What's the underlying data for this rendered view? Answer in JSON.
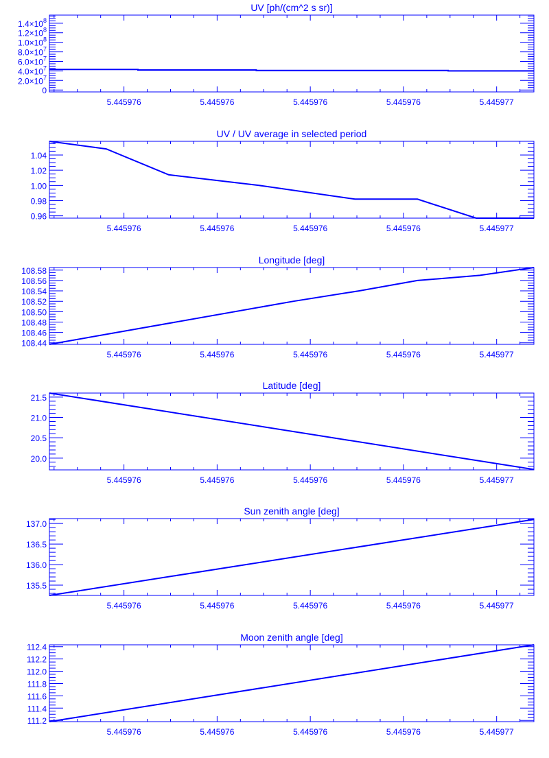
{
  "color": "#0000ff",
  "chart_data": [
    {
      "type": "line",
      "title": "UV [ph/(cm^2 s sr)]",
      "xlim": [
        5.44597602,
        5.44597654
      ],
      "ylim": [
        -4000000,
        157000000
      ],
      "x_ticks": [
        5.4459761,
        5.4459762,
        5.4459763,
        5.4459764,
        5.4459765
      ],
      "x_tick_labels": [
        "5.445976",
        "5.445976",
        "5.445976",
        "5.445976",
        "5.445977"
      ],
      "y_ticks": [
        0,
        20000000,
        40000000,
        60000000,
        80000000,
        100000000,
        120000000,
        140000000
      ],
      "y_tick_labels": [
        {
          "base": "0",
          "exp": ""
        },
        {
          "base": "2.0×10",
          "exp": "7"
        },
        {
          "base": "4.0×10",
          "exp": "7"
        },
        {
          "base": "6.0×10",
          "exp": "7"
        },
        {
          "base": "8.0×10",
          "exp": "7"
        },
        {
          "base": "1.0×10",
          "exp": "8"
        },
        {
          "base": "1.2×10",
          "exp": "8"
        },
        {
          "base": "1.4×10",
          "exp": "8"
        }
      ],
      "y_minor": 5000000,
      "x": [
        5.44597602,
        5.445976115,
        5.445976115,
        5.445976242,
        5.445976242,
        5.445976448,
        5.445976448,
        5.44597654
      ],
      "y": [
        43000000,
        43000000,
        42000000,
        42000000,
        41000000,
        41000000,
        40000000,
        40000000
      ]
    },
    {
      "type": "line",
      "title": "UV / UV average in selected period",
      "xlim": [
        5.44597602,
        5.44597654
      ],
      "ylim": [
        0.957,
        1.058
      ],
      "x_ticks": [
        5.4459761,
        5.4459762,
        5.4459763,
        5.4459764,
        5.4459765
      ],
      "x_tick_labels": [
        "5.445976",
        "5.445976",
        "5.445976",
        "5.445976",
        "5.445977"
      ],
      "y_ticks": [
        0.96,
        0.98,
        1.0,
        1.02,
        1.04
      ],
      "y_tick_labels": [
        {
          "base": "0.96",
          "exp": ""
        },
        {
          "base": "0.98",
          "exp": ""
        },
        {
          "base": "1.00",
          "exp": ""
        },
        {
          "base": "1.02",
          "exp": ""
        },
        {
          "base": "1.04",
          "exp": ""
        }
      ],
      "y_minor": 0.005,
      "x": [
        5.44597602,
        5.445976081,
        5.445976148,
        5.445976245,
        5.445976348,
        5.445976415,
        5.445976478,
        5.44597654
      ],
      "y": [
        1.058,
        1.048,
        1.014,
        1.0,
        0.982,
        0.982,
        0.957,
        0.957
      ]
    },
    {
      "type": "line",
      "title": "Longitude [deg]",
      "xlim": [
        5.44597602,
        5.44597654
      ],
      "ylim": [
        108.437,
        108.585
      ],
      "x_ticks": [
        5.4459761,
        5.4459762,
        5.4459763,
        5.4459764,
        5.4459765
      ],
      "x_tick_labels": [
        "5.445976",
        "5.445976",
        "5.445976",
        "5.445976",
        "5.445977"
      ],
      "y_ticks": [
        108.44,
        108.46,
        108.48,
        108.5,
        108.52,
        108.54,
        108.56,
        108.58
      ],
      "y_tick_labels": [
        {
          "base": "108.44",
          "exp": ""
        },
        {
          "base": "108.46",
          "exp": ""
        },
        {
          "base": "108.48",
          "exp": ""
        },
        {
          "base": "108.50",
          "exp": ""
        },
        {
          "base": "108.52",
          "exp": ""
        },
        {
          "base": "108.54",
          "exp": ""
        },
        {
          "base": "108.56",
          "exp": ""
        },
        {
          "base": "108.58",
          "exp": ""
        }
      ],
      "y_minor": 0.005,
      "x": [
        5.44597602,
        5.445976282,
        5.445976352,
        5.445976415,
        5.445976482,
        5.44597654
      ],
      "y": [
        108.437,
        108.52,
        108.54,
        108.56,
        108.57,
        108.585
      ]
    },
    {
      "type": "line",
      "title": "Latitude [deg]",
      "xlim": [
        5.44597602,
        5.44597654
      ],
      "ylim": [
        19.71,
        21.6
      ],
      "x_ticks": [
        5.4459761,
        5.4459762,
        5.4459763,
        5.4459764,
        5.4459765
      ],
      "x_tick_labels": [
        "5.445976",
        "5.445976",
        "5.445976",
        "5.445976",
        "5.445977"
      ],
      "y_ticks": [
        20.0,
        20.5,
        21.0,
        21.5
      ],
      "y_tick_labels": [
        {
          "base": "20.0",
          "exp": ""
        },
        {
          "base": "20.5",
          "exp": ""
        },
        {
          "base": "21.0",
          "exp": ""
        },
        {
          "base": "21.5",
          "exp": ""
        }
      ],
      "y_minor": 0.1,
      "x": [
        5.44597602,
        5.44597654
      ],
      "y": [
        21.6,
        19.72
      ]
    },
    {
      "type": "line",
      "title": "Sun zenith angle [deg]",
      "xlim": [
        5.44597602,
        5.44597654
      ],
      "ylim": [
        135.25,
        137.12
      ],
      "x_ticks": [
        5.4459761,
        5.4459762,
        5.4459763,
        5.4459764,
        5.4459765
      ],
      "x_tick_labels": [
        "5.445976",
        "5.445976",
        "5.445976",
        "5.445976",
        "5.445977"
      ],
      "y_ticks": [
        135.5,
        136.0,
        136.5,
        137.0
      ],
      "y_tick_labels": [
        {
          "base": "135.5",
          "exp": ""
        },
        {
          "base": "136.0",
          "exp": ""
        },
        {
          "base": "136.5",
          "exp": ""
        },
        {
          "base": "137.0",
          "exp": ""
        }
      ],
      "y_minor": 0.1,
      "x": [
        5.44597602,
        5.44597654
      ],
      "y": [
        135.25,
        137.1
      ]
    },
    {
      "type": "line",
      "title": "Moon zenith angle [deg]",
      "xlim": [
        5.44597602,
        5.44597654
      ],
      "ylim": [
        111.18,
        112.43
      ],
      "x_ticks": [
        5.4459761,
        5.4459762,
        5.4459763,
        5.4459764,
        5.4459765
      ],
      "x_tick_labels": [
        "5.445976",
        "5.445976",
        "5.445976",
        "5.445976",
        "5.445977"
      ],
      "y_ticks": [
        111.2,
        111.4,
        111.6,
        111.8,
        112.0,
        112.2,
        112.4
      ],
      "y_tick_labels": [
        {
          "base": "111.2",
          "exp": ""
        },
        {
          "base": "111.4",
          "exp": ""
        },
        {
          "base": "111.6",
          "exp": ""
        },
        {
          "base": "111.8",
          "exp": ""
        },
        {
          "base": "112.0",
          "exp": ""
        },
        {
          "base": "112.2",
          "exp": ""
        },
        {
          "base": "112.4",
          "exp": ""
        }
      ],
      "y_minor": 0.05,
      "x": [
        5.44597602,
        5.44597654
      ],
      "y": [
        111.18,
        112.43
      ]
    }
  ]
}
